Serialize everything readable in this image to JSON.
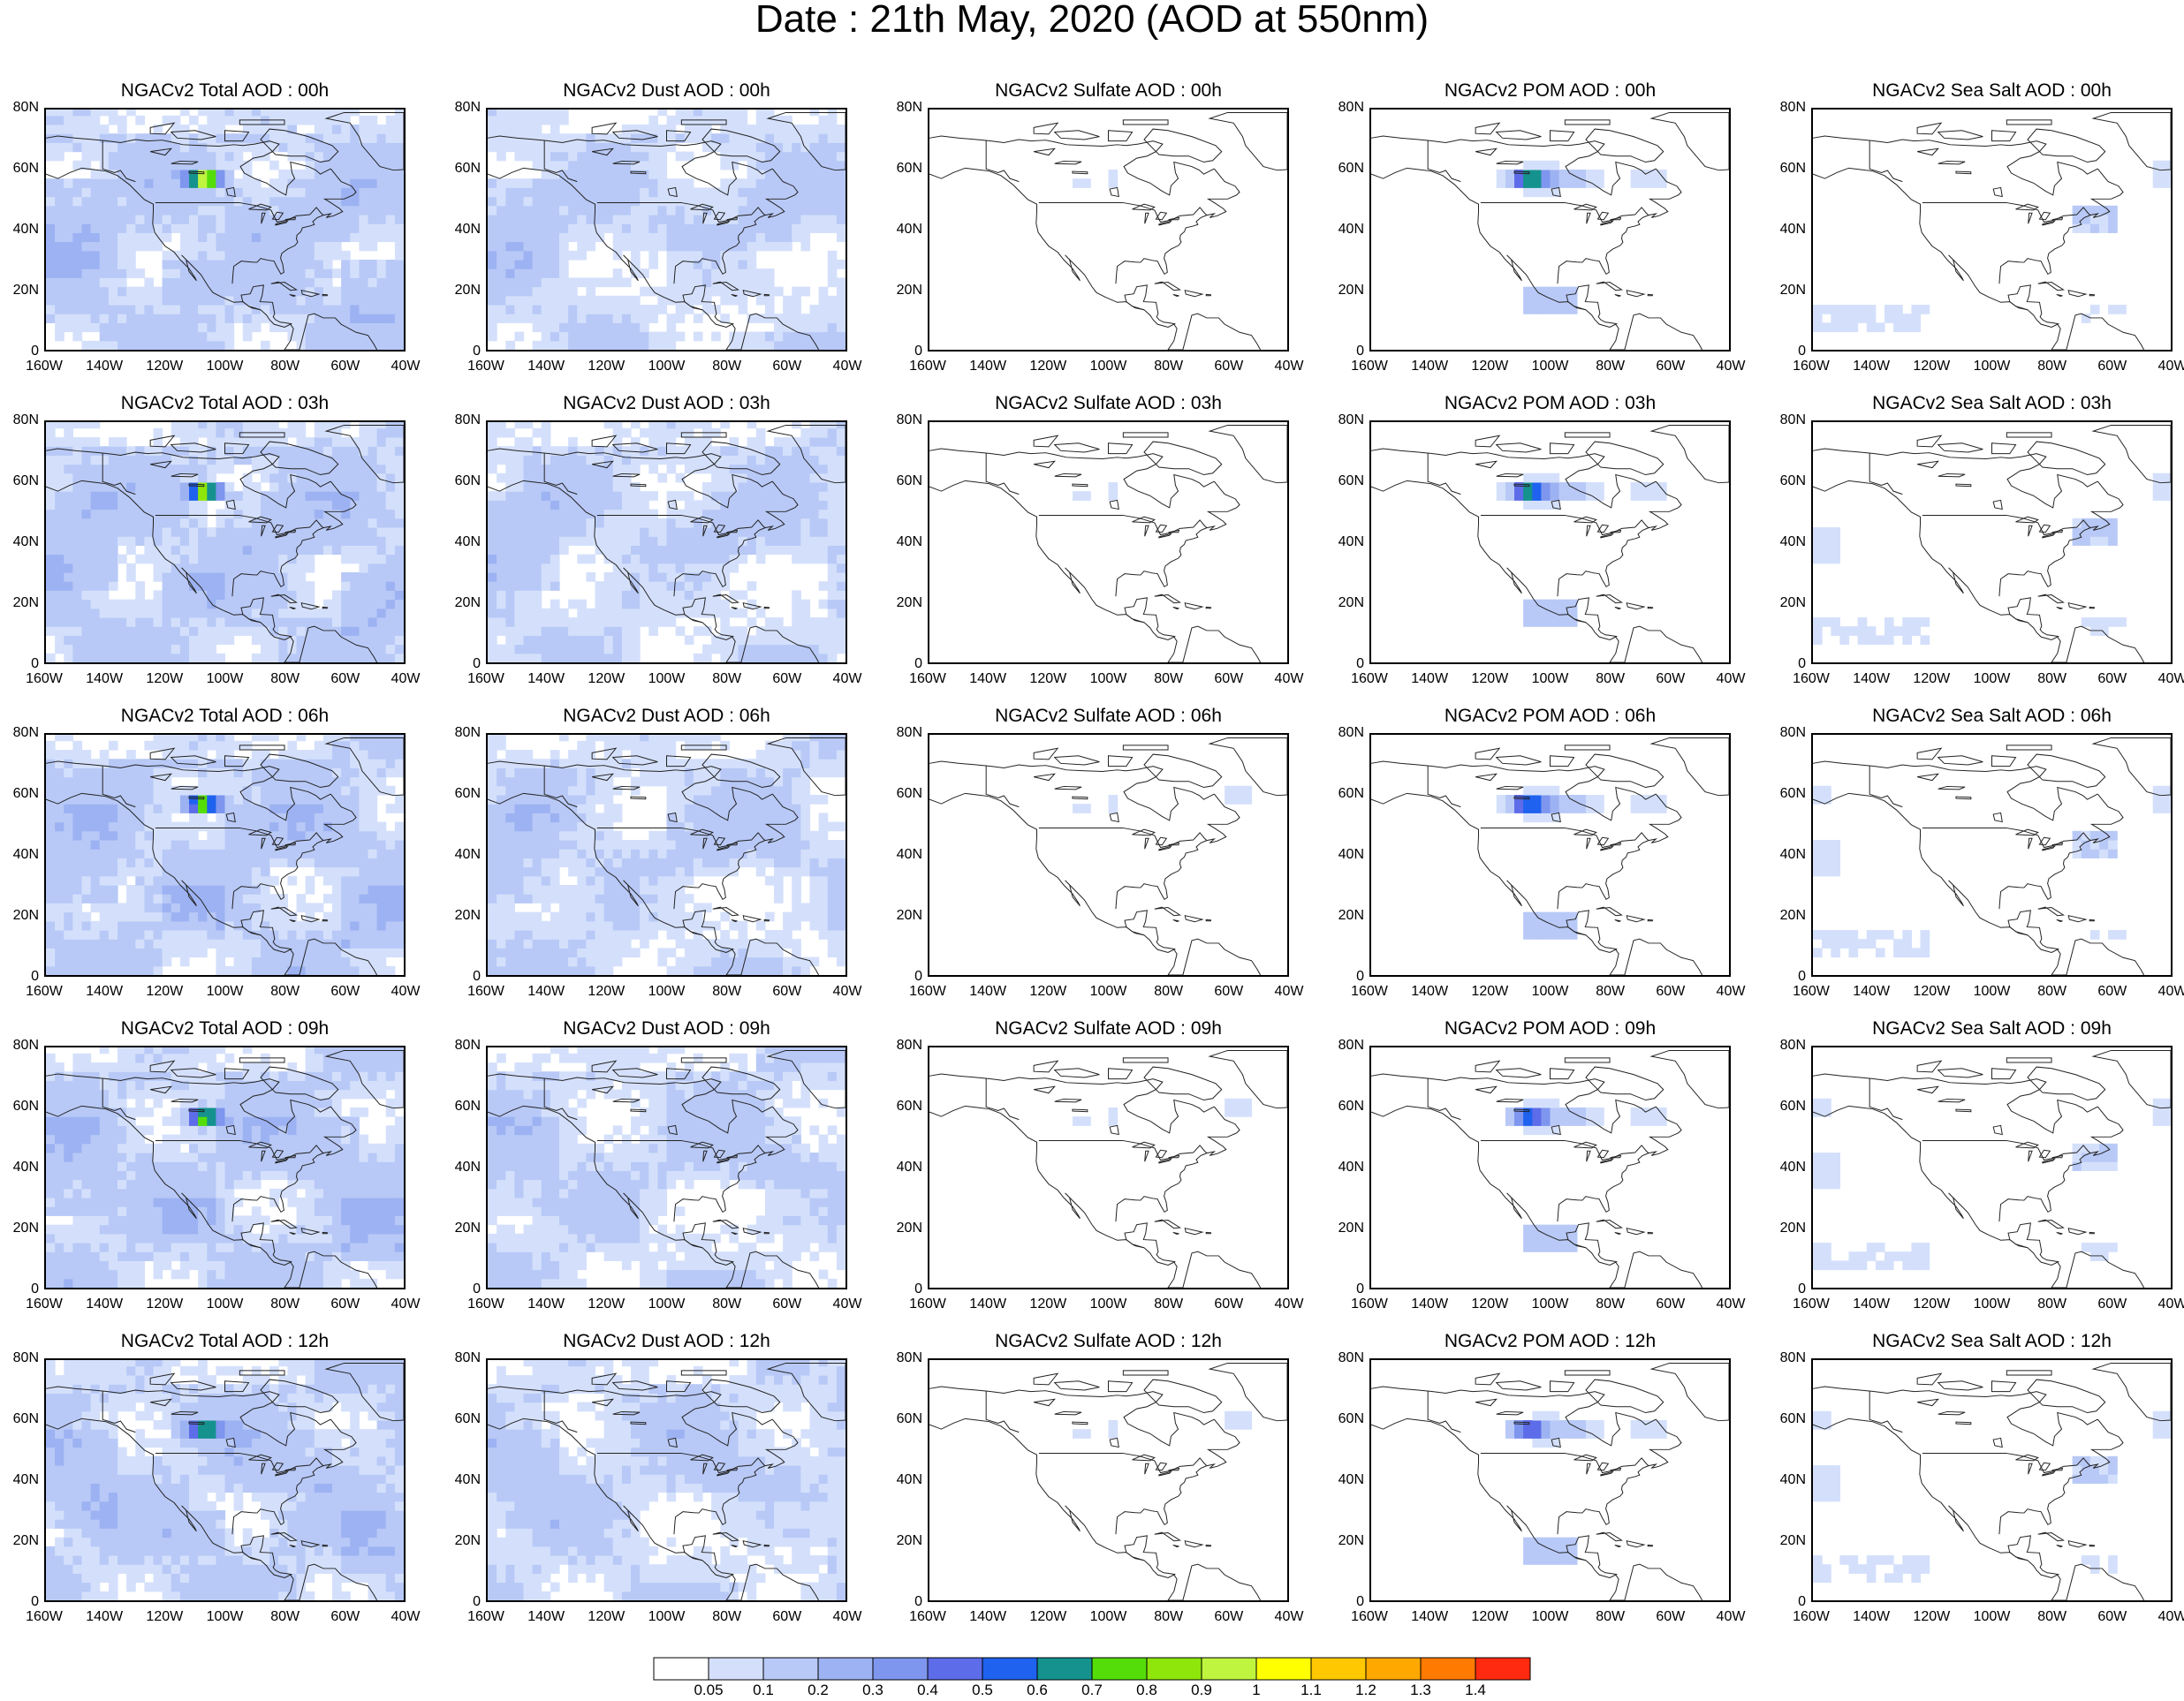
{
  "page_title": "Date : 21th May, 2020 (AOD at 550nm)",
  "chart_data": {
    "type": "heatmap",
    "panel_grid": "5 rows x 5 columns",
    "map_extent": {
      "lon": [
        -160,
        -40
      ],
      "lat": [
        0,
        80
      ]
    },
    "x_ticks": [
      "160W",
      "140W",
      "120W",
      "100W",
      "80W",
      "60W",
      "40W"
    ],
    "y_ticks": [
      "80N",
      "60N",
      "40N",
      "20N",
      "0"
    ],
    "panels": [
      [
        "NGACv2 Total AOD : 00h",
        "NGACv2 Dust AOD : 00h",
        "NGACv2 Sulfate AOD : 00h",
        "NGACv2 POM AOD : 00h",
        "NGACv2 Sea Salt AOD : 00h"
      ],
      [
        "NGACv2 Total AOD : 03h",
        "NGACv2 Dust AOD : 03h",
        "NGACv2 Sulfate AOD : 03h",
        "NGACv2 POM AOD : 03h",
        "NGACv2 Sea Salt AOD : 03h"
      ],
      [
        "NGACv2 Total AOD : 06h",
        "NGACv2 Dust AOD : 06h",
        "NGACv2 Sulfate AOD : 06h",
        "NGACv2 POM AOD : 06h",
        "NGACv2 Sea Salt AOD : 06h"
      ],
      [
        "NGACv2 Total AOD : 09h",
        "NGACv2 Dust AOD : 09h",
        "NGACv2 Sulfate AOD : 09h",
        "NGACv2 POM AOD : 09h",
        "NGACv2 Sea Salt  AOD : 09h"
      ],
      [
        "NGACv2 Total AOD  : 12h",
        "NGACv2 Dust AOD : 12h",
        "NGACv2 Sulfate AOD : 12h",
        "NGACv2 POM  AOD : 12h",
        "NGACv2 Sea Salt  AOD : 12h"
      ]
    ],
    "colorbar": {
      "labels": [
        "0.05",
        "0.1",
        "0.2",
        "0.3",
        "0.4",
        "0.5",
        "0.6",
        "0.7",
        "0.8",
        "0.9",
        "1",
        "1.1",
        "1.2",
        "1.3",
        "1.4"
      ],
      "colors": [
        "#ffffff",
        "#d4e0fb",
        "#b8c9f7",
        "#9db2f2",
        "#7e96ee",
        "#5d6ce8",
        "#1f62ef",
        "#15928e",
        "#55dd0a",
        "#8ee60a",
        "#bff53f",
        "#ffff00",
        "#ffc800",
        "#ffa800",
        "#ff7a00",
        "#ff2a10"
      ]
    },
    "legend_placement": "bottom-center",
    "grid": false
  }
}
